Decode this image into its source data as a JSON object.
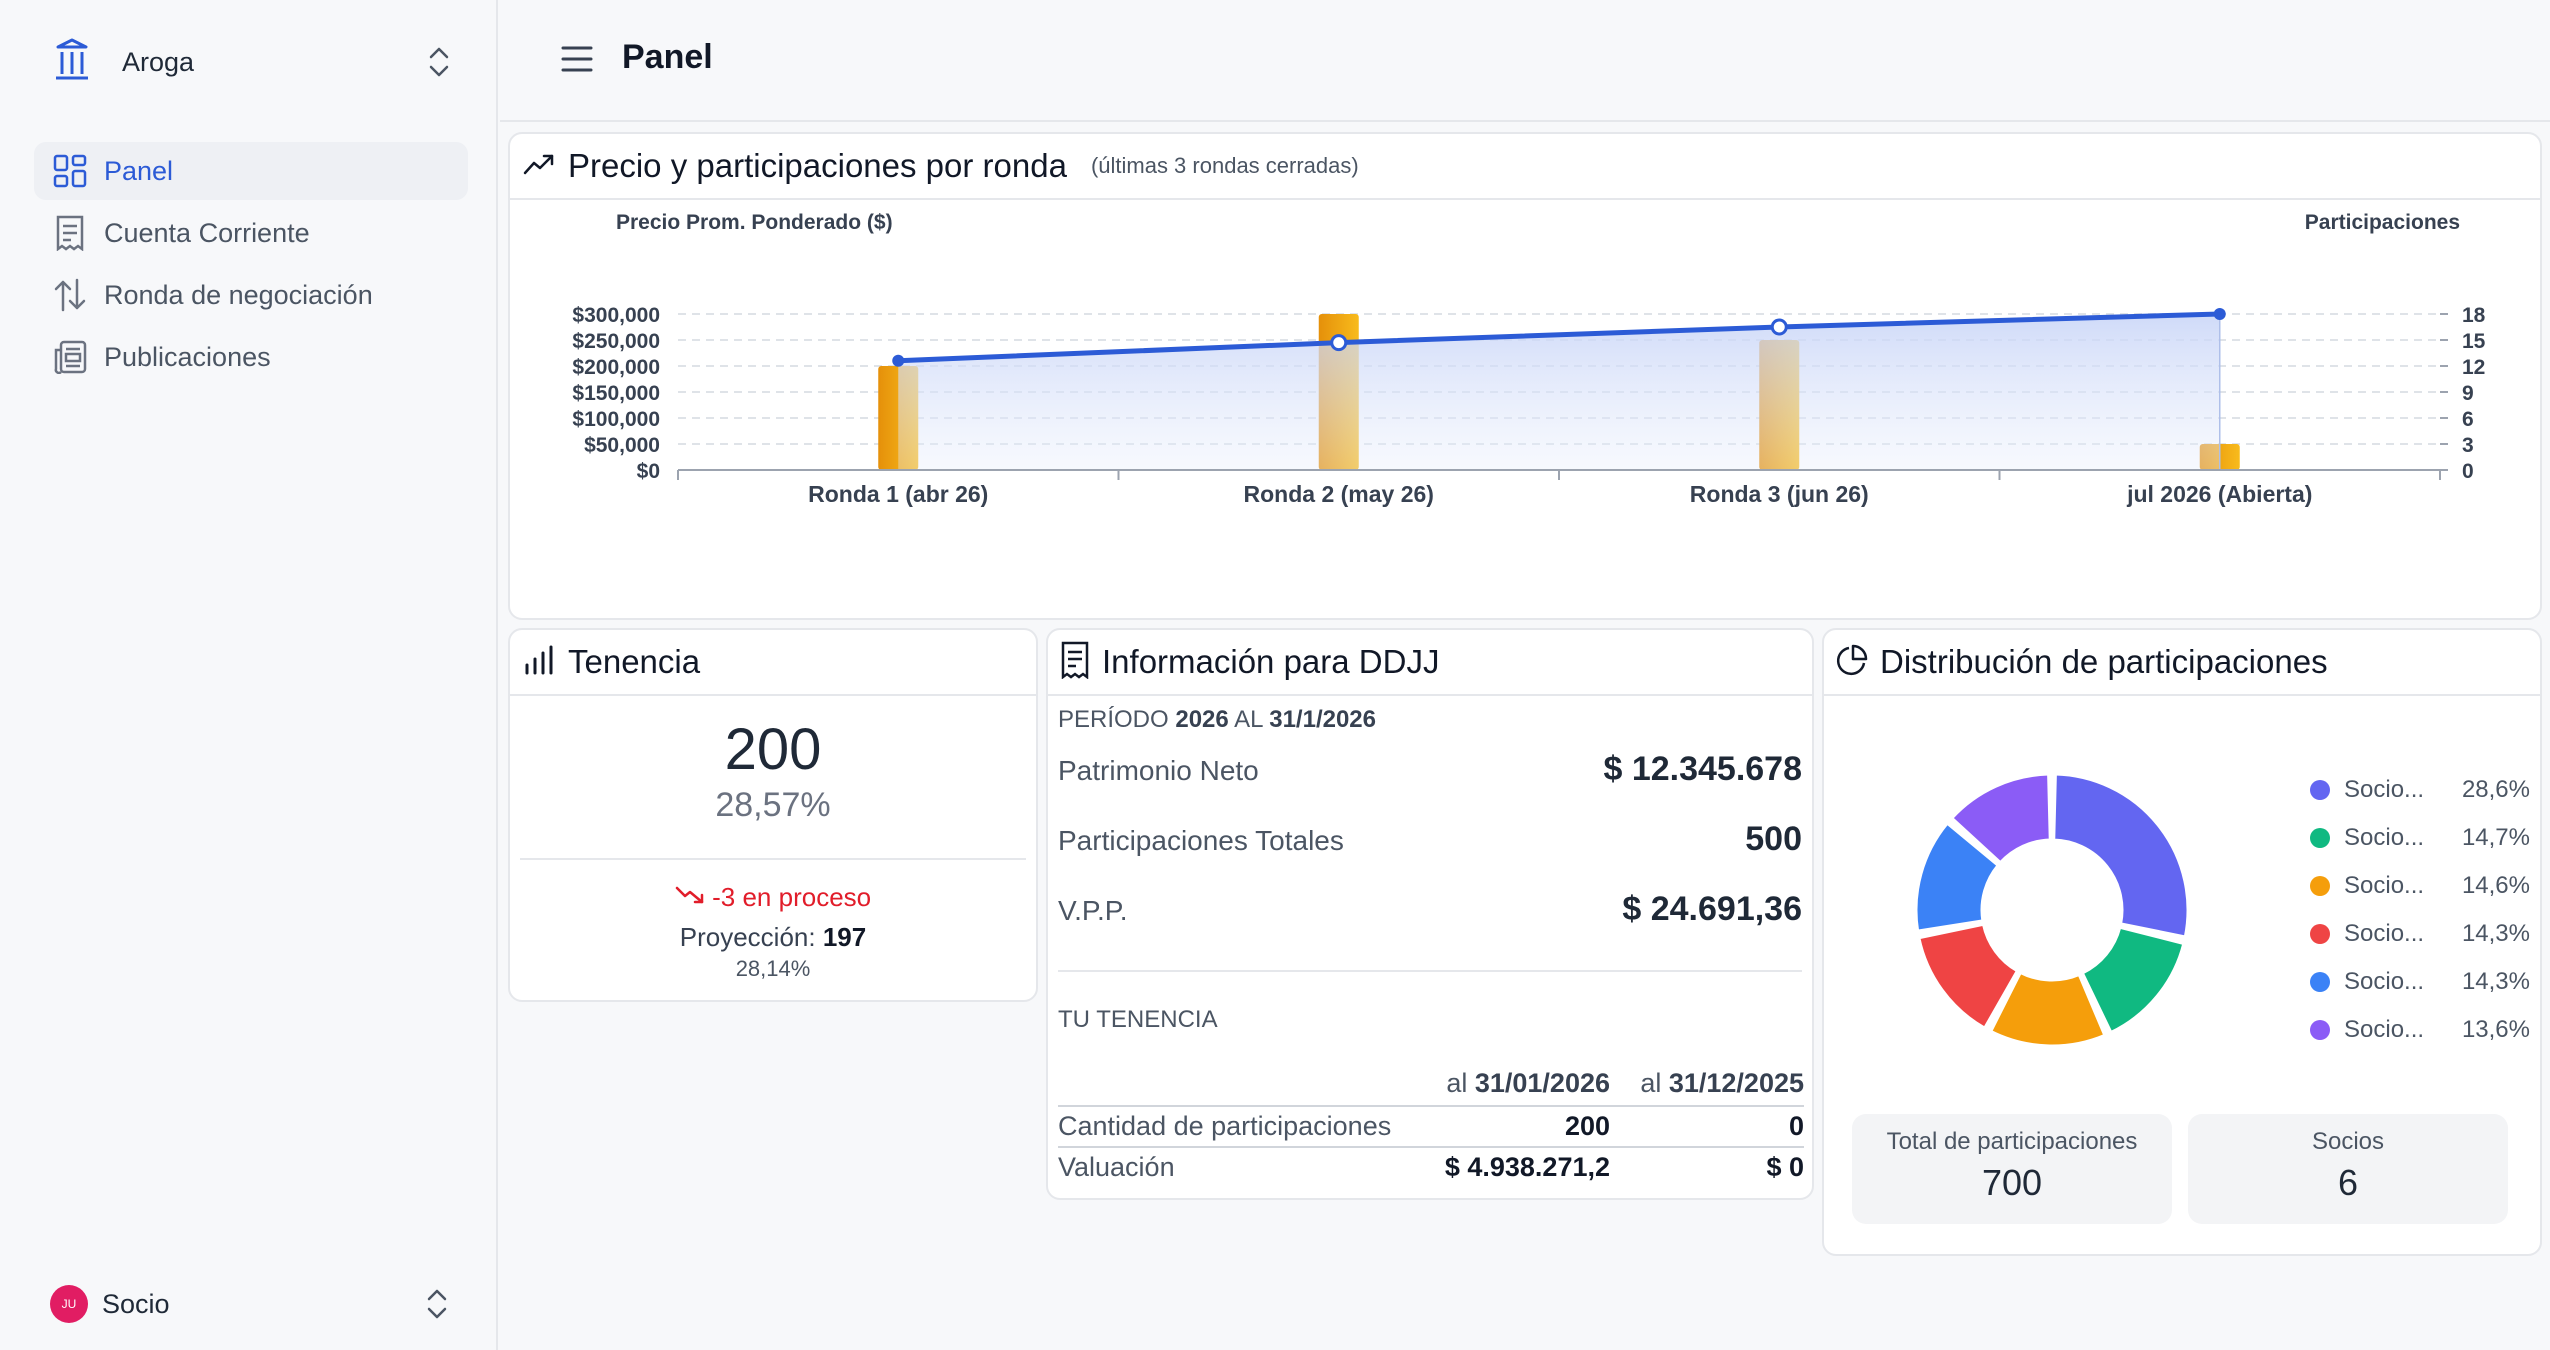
{
  "sidebar": {
    "org_name": "Aroga",
    "items": [
      {
        "label": "Panel",
        "icon": "dashboard-icon",
        "active": true
      },
      {
        "label": "Cuenta Corriente",
        "icon": "receipt-icon",
        "active": false
      },
      {
        "label": "Ronda de negociación",
        "icon": "swap-vertical-icon",
        "active": false
      },
      {
        "label": "Publicaciones",
        "icon": "newspaper-icon",
        "active": false
      }
    ],
    "user": {
      "initials": "JU",
      "role": "Socio"
    }
  },
  "header": {
    "title": "Panel"
  },
  "price_chart": {
    "title": "Precio y participaciones por ronda",
    "subtitle": "(últimas 3 rondas cerradas)"
  },
  "chart_data": {
    "type": "bar",
    "categories": [
      "Ronda 1 (abr 26)",
      "Ronda 2 (may 26)",
      "Ronda 3 (jun 26)",
      "jul 2026 (Abierta)"
    ],
    "ylabel": "Precio Prom. Ponderado ($)",
    "y2label": "Participaciones",
    "ylim": [
      0,
      300000
    ],
    "y2lim": [
      0,
      18
    ],
    "yticks": [
      "$0",
      "$50,000",
      "$100,000",
      "$150,000",
      "$200,000",
      "$250,000",
      "$300,000"
    ],
    "y2ticks": [
      "0",
      "3",
      "6",
      "9",
      "12",
      "15",
      "18"
    ],
    "grid": true,
    "series": [
      {
        "values": [
          12,
          18,
          15,
          3
        ],
        "axis": "right",
        "kind": "bar",
        "color": "#f5a70f"
      },
      {
        "values": [
          210000,
          245000,
          275000,
          300000
        ],
        "axis": "left",
        "kind": "line-area",
        "color": "#2c5bd6"
      }
    ]
  },
  "tenencia": {
    "title": "Tenencia",
    "count": "200",
    "pct": "28,57%",
    "in_process": "-3 en proceso",
    "projection_label": "Proyección:",
    "projection_value": "197",
    "projection_pct": "28,14%"
  },
  "ddjj": {
    "title": "Información para DDJJ",
    "period_prefix": "PERÍODO",
    "period_year": "2026",
    "period_mid": "AL",
    "period_date": "31/1/2026",
    "rows": [
      {
        "label": "Patrimonio Neto",
        "value": "$ 12.345.678"
      },
      {
        "label": "Participaciones Totales",
        "value": "500"
      },
      {
        "label": "V.P.P.",
        "value": "$ 24.691,36"
      }
    ],
    "holding_title": "TU TENENCIA",
    "col1_prefix": "al",
    "col1_date": "31/01/2026",
    "col2_prefix": "al",
    "col2_date": "31/12/2025",
    "table": [
      {
        "label": "Cantidad de participaciones",
        "v1": "200",
        "v2": "0"
      },
      {
        "label": "Valuación",
        "v1": "$ 4.938.271,2",
        "v2": "$ 0"
      }
    ]
  },
  "distribution": {
    "title": "Distribución de participaciones",
    "slices": [
      {
        "name": "Socio...",
        "pct_label": "28,6%",
        "value": 28.6,
        "color": "#6366f1"
      },
      {
        "name": "Socio...",
        "pct_label": "14,7%",
        "value": 14.7,
        "color": "#10b981"
      },
      {
        "name": "Socio...",
        "pct_label": "14,6%",
        "value": 14.6,
        "color": "#f59e0b"
      },
      {
        "name": "Socio...",
        "pct_label": "14,3%",
        "value": 14.3,
        "color": "#ef4444"
      },
      {
        "name": "Socio...",
        "pct_label": "14,3%",
        "value": 14.3,
        "color": "#3b82f6"
      },
      {
        "name": "Socio...",
        "pct_label": "13,6%",
        "value": 13.6,
        "color": "#8b5cf6"
      }
    ],
    "total_label": "Total de participaciones",
    "total_value": "700",
    "members_label": "Socios",
    "members_value": "6"
  }
}
